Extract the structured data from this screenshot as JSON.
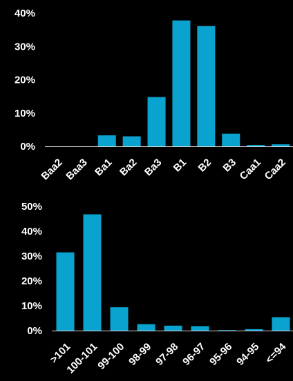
{
  "chart_data": [
    {
      "type": "bar",
      "categories": [
        "Baa2",
        "Baa3",
        "Ba1",
        "Ba2",
        "Ba3",
        "B1",
        "B2",
        "B3",
        "Caa1",
        "Caa2"
      ],
      "values": [
        0,
        0,
        3.3,
        3.0,
        14.8,
        37.8,
        36.1,
        3.8,
        0.4,
        0.6
      ],
      "y_tick_labels": [
        "0%",
        "10%",
        "20%",
        "30%",
        "40%"
      ],
      "ylim": [
        0,
        40
      ],
      "grid": false,
      "color": "#0aa3cf"
    },
    {
      "type": "bar",
      "categories": [
        ">101",
        "100-101",
        "99-100",
        "98-99",
        "97-98",
        "96-97",
        "95-96",
        "94-95",
        "<=94"
      ],
      "values": [
        31.5,
        46.8,
        9.4,
        2.6,
        2.0,
        1.8,
        0.2,
        0.6,
        5.4
      ],
      "y_tick_labels": [
        "0%",
        "10%",
        "20%",
        "30%",
        "40%",
        "50%"
      ],
      "ylim": [
        0,
        50
      ],
      "grid": false,
      "color": "#0aa3cf"
    }
  ]
}
